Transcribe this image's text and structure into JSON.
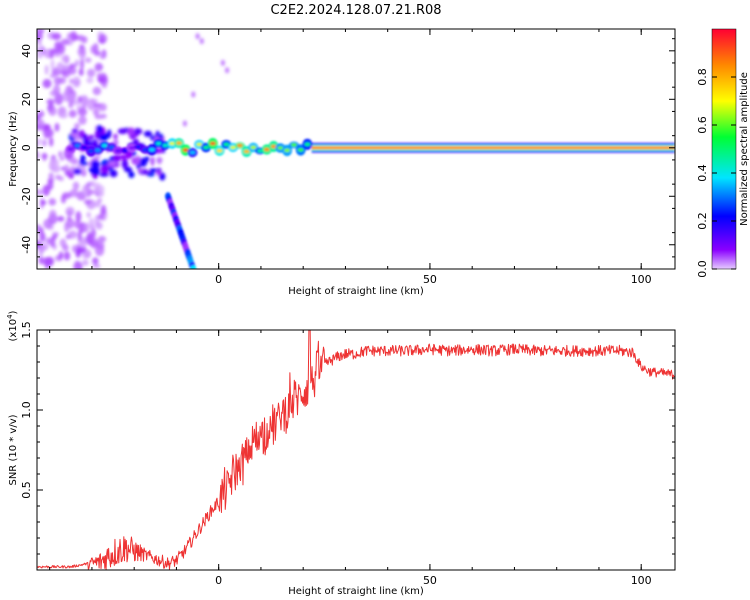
{
  "title": "C2E2.2024.128.07.21.R08",
  "chart_data": [
    {
      "type": "heatmap",
      "xlabel": "Height of straight line (km)",
      "ylabel": "Frequency (Hz)",
      "xlim": [
        -43,
        108
      ],
      "ylim": [
        -50,
        49
      ],
      "x_ticks": [
        0,
        50,
        100
      ],
      "y_ticks": [
        -40,
        -20,
        0,
        20,
        40
      ],
      "dominant_band": {
        "frequency_hz": 0,
        "x_from": -35,
        "x_to": 108,
        "steady_from": 22
      },
      "secondary_streak": {
        "x_from": -12,
        "x_to": -6,
        "frequency_from_hz": -20,
        "frequency_to_hz": -50
      },
      "noise_cloud": {
        "x_from": -43,
        "x_to": -27
      },
      "colorbar": {
        "label": "Normalized spectral amplitude",
        "range": [
          0,
          1
        ],
        "ticks": [
          "0.0",
          "0.2",
          "0.4",
          "0.6",
          "0.8"
        ],
        "colormap": [
          "#e6ccff",
          "#8a00ff",
          "#0000ff",
          "#00e5ff",
          "#00ff33",
          "#ffff00",
          "#ff8800",
          "#ff0033"
        ]
      }
    },
    {
      "type": "line",
      "xlabel": "Height of straight line (km)",
      "ylabel": "SNR (10 * v/v)",
      "y_multiplier": "(x10",
      "y_exponent": "4",
      "xlim": [
        -43,
        108
      ],
      "ylim": [
        0,
        1.5
      ],
      "x_ticks": [
        0,
        50,
        100
      ],
      "y_ticks": [
        "0.5",
        "1.0",
        "1.5"
      ],
      "color": "#ee3333",
      "series": [
        {
          "x": [
            -43,
            -35,
            -31,
            -28,
            -26,
            -24,
            -22,
            -20,
            -18,
            -16,
            -14,
            -12,
            -10,
            -8,
            -6,
            -4,
            -2,
            0,
            2,
            4,
            6,
            8,
            10,
            12,
            14,
            16,
            18,
            20,
            22,
            24,
            26,
            28,
            30,
            32,
            35,
            40,
            45,
            50,
            55,
            60,
            65,
            70,
            75,
            80,
            85,
            90,
            95,
            98,
            100,
            102,
            105,
            108
          ],
          "values": [
            0.02,
            0.02,
            0.04,
            0.05,
            0.09,
            0.12,
            0.14,
            0.12,
            0.1,
            0.08,
            0.06,
            0.04,
            0.06,
            0.12,
            0.2,
            0.28,
            0.36,
            0.43,
            0.52,
            0.62,
            0.68,
            0.78,
            0.85,
            0.88,
            0.94,
            1.0,
            1.06,
            1.12,
            1.18,
            1.26,
            1.3,
            1.33,
            1.35,
            1.35,
            1.37,
            1.37,
            1.37,
            1.38,
            1.37,
            1.38,
            1.37,
            1.38,
            1.37,
            1.37,
            1.37,
            1.37,
            1.37,
            1.36,
            1.27,
            1.24,
            1.23,
            1.22
          ]
        }
      ]
    }
  ]
}
